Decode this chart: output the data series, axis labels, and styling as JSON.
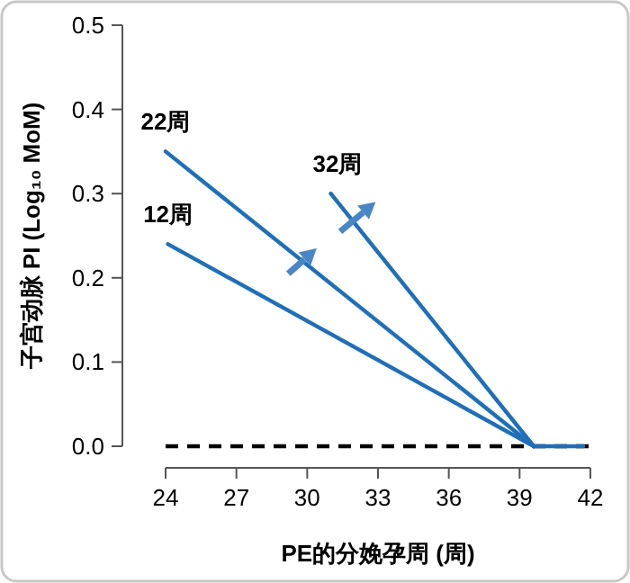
{
  "chart_data": {
    "type": "line",
    "xlabel": "PE的分娩孕周 (周)",
    "ylabel": "子宫动脉 PI (Log₁₀ MoM)",
    "xlim": [
      24,
      42
    ],
    "ylim": [
      0,
      0.5
    ],
    "xticks": [
      24,
      27,
      30,
      33,
      36,
      39,
      42
    ],
    "yticks": [
      {
        "value": 0,
        "label": "0.0"
      },
      {
        "value": 0.1,
        "label": "0.1"
      },
      {
        "value": 0.2,
        "label": "0.2"
      },
      {
        "value": 0.3,
        "label": "0.3"
      },
      {
        "value": 0.4,
        "label": "0.4"
      },
      {
        "value": 0.5,
        "label": "0.5"
      }
    ],
    "grid": false,
    "marker": "none",
    "line_style": "solid",
    "series": [
      {
        "name": "22周",
        "color": "#1f6fb8",
        "x": [
          24,
          39.6
        ],
        "values": [
          0.35,
          0
        ]
      },
      {
        "name": "12周",
        "color": "#1f6fb8",
        "x": [
          24.1,
          39.6
        ],
        "values": [
          0.24,
          0
        ]
      },
      {
        "name": "32周",
        "color": "#1f6fb8",
        "x": [
          31,
          39.6
        ],
        "values": [
          0.3,
          0
        ]
      },
      {
        "color": "#1f6fb8",
        "x": [
          39.6,
          41.7
        ],
        "values": [
          0,
          0
        ]
      }
    ],
    "ref_lines": [
      {
        "axis": "y",
        "value": 0,
        "color": "#000000",
        "line_style": "dashed"
      }
    ]
  }
}
